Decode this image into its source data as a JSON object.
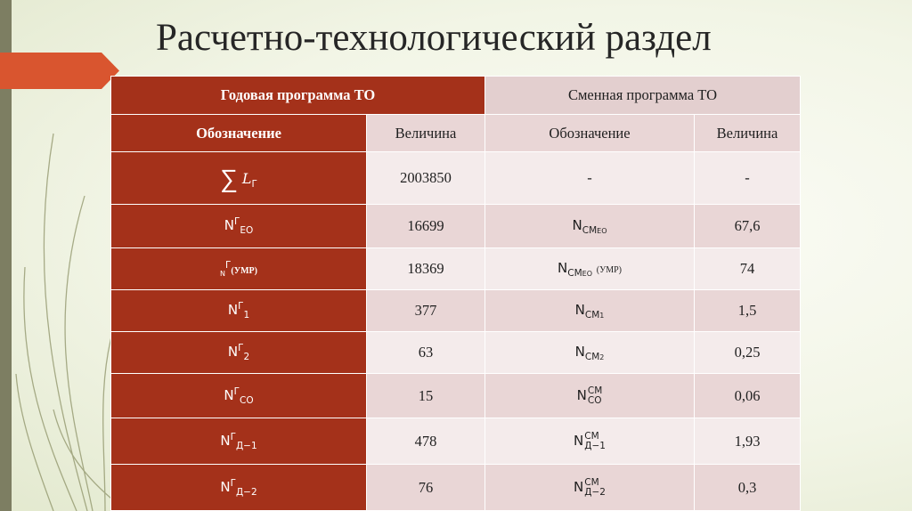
{
  "slide": {
    "title": "Расчетно-технологический раздел"
  },
  "colors": {
    "accent_red": "#a4311a",
    "pink_header": "#e3cfcf",
    "pink_row_dark": "#e9d6d6",
    "pink_row_light": "#f4ebeb",
    "side_bar": "#7d7e62"
  },
  "table": {
    "group_headers": {
      "annual": "Годовая программа ТО",
      "shift": "Сменная программа ТО"
    },
    "column_headers": {
      "annual_designation": "Обозначение",
      "annual_value": "Величина",
      "shift_designation": "Обозначение",
      "shift_value": "Величина"
    },
    "rows": [
      {
        "annual_symbol": {
          "main": "L",
          "sup": "",
          "sub": "Г",
          "prefix": "∑"
        },
        "annual_value": "2003850",
        "shift_symbol": {
          "text": "-"
        },
        "shift_value": "-"
      },
      {
        "annual_symbol": {
          "main": "N",
          "sup": "Г",
          "sub": "ЕО"
        },
        "annual_value": "16699",
        "shift_symbol": {
          "main": "N",
          "sub": "СМ",
          "subsub": "ЕО"
        },
        "shift_value": "67,6"
      },
      {
        "annual_symbol": {
          "main": "N",
          "sup": "Г",
          "sub": "(УМР)"
        },
        "annual_value": "18369",
        "shift_symbol": {
          "main": "N",
          "sub": "СМ",
          "subsub": "ЕО",
          "suffix": "(УМР)"
        },
        "shift_value": "74"
      },
      {
        "annual_symbol": {
          "main": "N",
          "sup": "Г",
          "sub": "1"
        },
        "annual_value": "377",
        "shift_symbol": {
          "main": "N",
          "sub": "СМ",
          "subsub": "1"
        },
        "shift_value": "1,5"
      },
      {
        "annual_symbol": {
          "main": "N",
          "sup": "Г",
          "sub": "2"
        },
        "annual_value": "63",
        "shift_symbol": {
          "main": "N",
          "sub": "СМ",
          "subsub": "2"
        },
        "shift_value": "0,25"
      },
      {
        "annual_symbol": {
          "main": "N",
          "sup": "Г",
          "sub": "СО"
        },
        "annual_value": "15",
        "shift_symbol": {
          "main": "N",
          "sup": "СМ",
          "sub": "СО"
        },
        "shift_value": "0,06"
      },
      {
        "annual_symbol": {
          "main": "N",
          "sup": "Г",
          "sub": "Д−1"
        },
        "annual_value": "478",
        "shift_symbol": {
          "main": "N",
          "sup": "СМ",
          "sub": "Д−1"
        },
        "shift_value": "1,93"
      },
      {
        "annual_symbol": {
          "main": "N",
          "sup": "Г",
          "sub": "Д−2"
        },
        "annual_value": "76",
        "shift_symbol": {
          "main": "N",
          "sup": "СМ",
          "sub": "Д−2"
        },
        "shift_value": "0,3"
      }
    ]
  }
}
